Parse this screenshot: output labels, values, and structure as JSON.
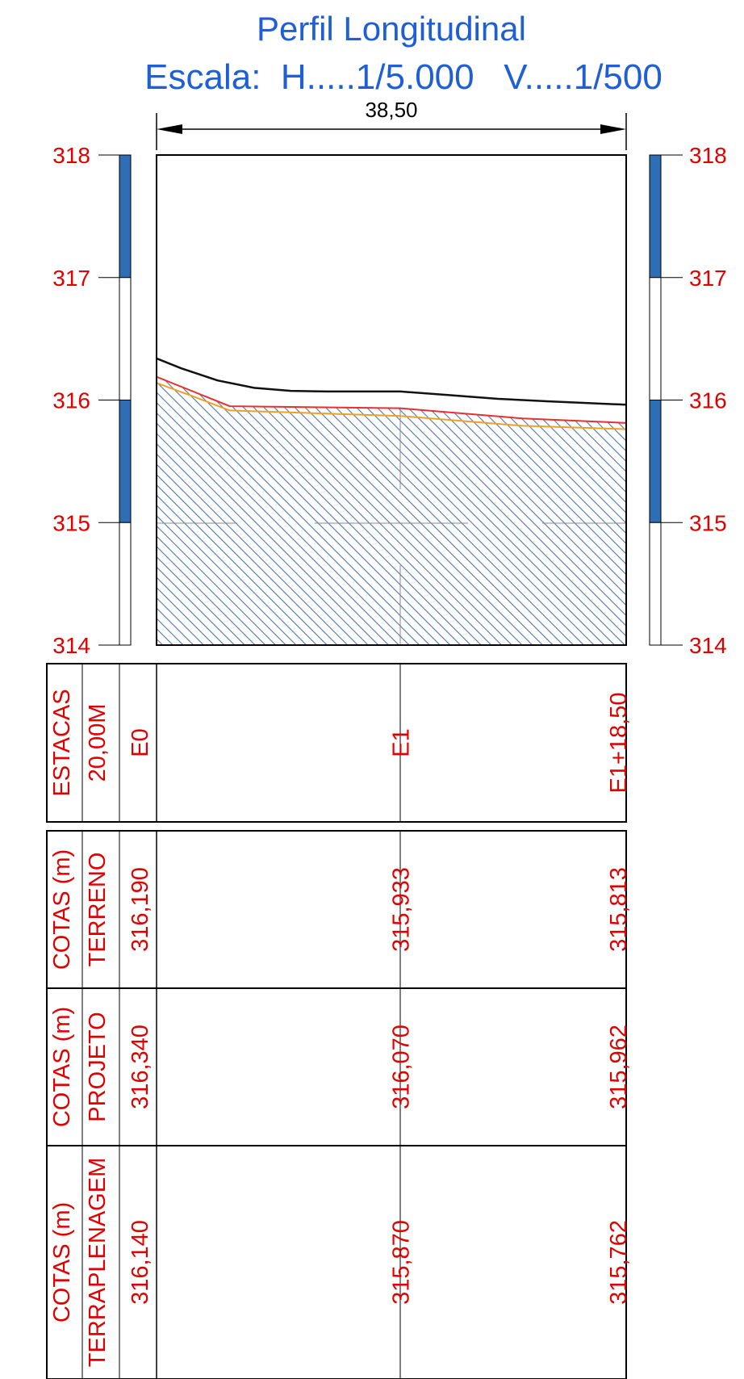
{
  "title": "Perfil Longitudinal",
  "scale_label": "Escala:  H.....1/5.000   V.....1/500",
  "dimension_label": "38,50",
  "colors": {
    "title": "#1f5fd6",
    "label_red": "#e00000",
    "scale_blue": "#2e6fb3",
    "projeto_line": "#111111",
    "terreno_line": "#e83030",
    "terraplenagem_line": "#f0a020",
    "hatch": "#4a78b0"
  },
  "chart_data": {
    "type": "profile",
    "title": "Perfil Longitudinal",
    "ylim": [
      314,
      318
    ],
    "y_ticks": [
      "318",
      "317",
      "316",
      "315",
      "314"
    ],
    "xlim": [
      0,
      38.5
    ],
    "stations": [
      {
        "name": "E0",
        "x": 0
      },
      {
        "name": "E1",
        "x": 20
      },
      {
        "name": "E1+18,50",
        "x": 38.5
      }
    ],
    "series": [
      {
        "name": "PROJETO",
        "x": [
          0,
          2,
          5,
          8,
          11,
          14,
          17,
          20,
          24,
          28,
          32,
          38.5
        ],
        "y": [
          316.34,
          316.26,
          316.16,
          316.1,
          316.075,
          316.07,
          316.07,
          316.07,
          316.04,
          316.01,
          315.99,
          315.962
        ]
      },
      {
        "name": "TERRENO",
        "x": [
          0,
          3,
          6,
          20,
          30,
          38.5
        ],
        "y": [
          316.19,
          316.07,
          315.95,
          315.933,
          315.85,
          315.813
        ]
      },
      {
        "name": "TERRAPLENAGEM",
        "x": [
          0,
          3,
          6,
          20,
          30,
          38.5
        ],
        "y": [
          316.14,
          316.03,
          315.915,
          315.87,
          315.79,
          315.762
        ]
      }
    ]
  },
  "table": {
    "rows": [
      {
        "header": [
          "ESTACAS",
          "20,00M"
        ],
        "values": [
          "E0",
          "E1",
          "E1+18,50"
        ]
      },
      {
        "header": [
          "COTAS (m)",
          "TERRENO"
        ],
        "values": [
          "316,190",
          "315,933",
          "315,813"
        ]
      },
      {
        "header": [
          "COTAS (m)",
          "PROJETO"
        ],
        "values": [
          "316,340",
          "316,070",
          "315,962"
        ]
      },
      {
        "header": [
          "COTAS (m)",
          "TERRAPLENAGEM"
        ],
        "values": [
          "316,140",
          "315,870",
          "315,762"
        ]
      }
    ]
  }
}
